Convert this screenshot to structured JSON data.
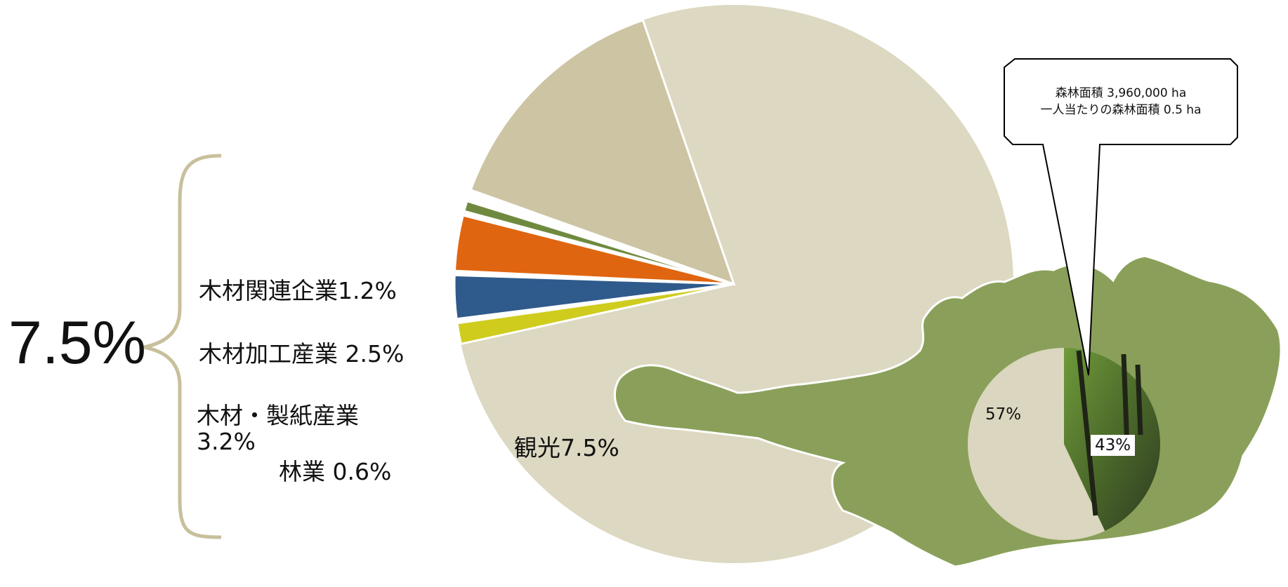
{
  "chart_data": [
    {
      "type": "pie",
      "style": "exploded",
      "total_label": "7.5%",
      "slices": [
        {
          "label": "木材関連企業",
          "value": 1.2,
          "text": "木材関連企業1.2%",
          "color": "#cfcc1e"
        },
        {
          "label": "木材加工産業",
          "value": 2.5,
          "text": "木材加工産業  2.5%",
          "color": "#2f5a8c"
        },
        {
          "label": "木材・製紙産業",
          "value": 3.2,
          "text_line1": "木材・製紙産業",
          "text_line2": "3.2%",
          "color": "#e06510"
        },
        {
          "label": "林業",
          "value": 0.6,
          "text": "林業  0.6%",
          "color": "#6f8a3e"
        },
        {
          "label": "観光",
          "value": 7.5,
          "text": "観光7.5%",
          "color": "#cdc4a4"
        },
        {
          "label": "",
          "value": 85.0,
          "color": "#ddd8c1"
        }
      ]
    },
    {
      "type": "pie",
      "slices": [
        {
          "label": "",
          "value": 57,
          "text": "57%",
          "color": "#dbd6bf"
        },
        {
          "label": "",
          "value": 43,
          "text": "43%",
          "fill": "forest-photo"
        }
      ]
    }
  ],
  "callout": {
    "line1": "森林面積 3,960,000   ha",
    "line2": "一人当たりの森林面積 0.5 ha"
  },
  "colors": {
    "map_green": "#8aa05a",
    "brace": "#c8bf9c"
  }
}
